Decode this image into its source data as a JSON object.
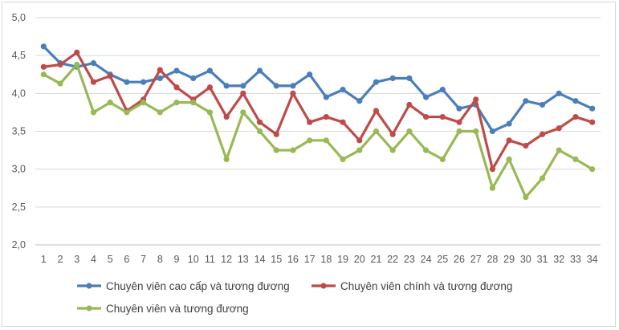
{
  "chart_data": {
    "type": "line",
    "title": "",
    "xlabel": "",
    "ylabel": "",
    "x": [
      1,
      2,
      3,
      4,
      5,
      6,
      7,
      8,
      9,
      10,
      11,
      12,
      13,
      14,
      15,
      16,
      17,
      18,
      19,
      20,
      21,
      22,
      23,
      24,
      25,
      26,
      27,
      28,
      29,
      30,
      31,
      32,
      33,
      34
    ],
    "x_tick_labels": [
      "1",
      "2",
      "3",
      "4",
      "5",
      "6",
      "7",
      "8",
      "9",
      "10",
      "11",
      "12",
      "13",
      "14",
      "15",
      "16",
      "17",
      "18",
      "19",
      "20",
      "21",
      "22",
      "23",
      "24",
      "25",
      "26",
      "27",
      "28",
      "29",
      "30",
      "31",
      "32",
      "33",
      "34"
    ],
    "ylim": [
      2.0,
      5.0
    ],
    "y_ticks": [
      2.0,
      2.5,
      3.0,
      3.5,
      4.0,
      4.5,
      5.0
    ],
    "y_tick_labels": [
      "2,0",
      "2,5",
      "3,0",
      "3,5",
      "4,0",
      "4,5",
      "5,0"
    ],
    "grid": "horizontal",
    "legend_position": "bottom",
    "series": [
      {
        "name": "Chuyên viên cao cấp và tương đương",
        "color": "#4a7ebb",
        "values": [
          4.62,
          4.4,
          4.35,
          4.4,
          4.25,
          4.15,
          4.15,
          4.2,
          4.3,
          4.2,
          4.3,
          4.1,
          4.1,
          4.3,
          4.1,
          4.1,
          4.25,
          3.95,
          4.05,
          3.9,
          4.15,
          4.2,
          4.2,
          3.95,
          4.05,
          3.8,
          3.85,
          3.5,
          3.6,
          3.9,
          3.85,
          4.0,
          3.9,
          3.8
        ]
      },
      {
        "name": "Chuyên viên chính và tương đương",
        "color": "#be4b48",
        "values": [
          4.35,
          4.38,
          4.54,
          4.15,
          4.23,
          3.77,
          3.92,
          4.31,
          4.08,
          3.92,
          4.08,
          3.69,
          4.0,
          3.62,
          3.46,
          4.0,
          3.62,
          3.69,
          3.62,
          3.38,
          3.77,
          3.46,
          3.85,
          3.69,
          3.69,
          3.62,
          3.92,
          3.0,
          3.38,
          3.31,
          3.46,
          3.54,
          3.69,
          3.62
        ]
      },
      {
        "name": "Chuyên viên và tương đương",
        "color": "#98b954",
        "values": [
          4.25,
          4.13,
          4.38,
          3.75,
          3.88,
          3.75,
          3.88,
          3.75,
          3.88,
          3.88,
          3.75,
          3.13,
          3.75,
          3.5,
          3.25,
          3.25,
          3.38,
          3.38,
          3.13,
          3.25,
          3.5,
          3.25,
          3.5,
          3.25,
          3.13,
          3.5,
          3.5,
          2.75,
          3.13,
          2.63,
          2.88,
          3.25,
          3.13,
          3.0
        ]
      }
    ]
  }
}
